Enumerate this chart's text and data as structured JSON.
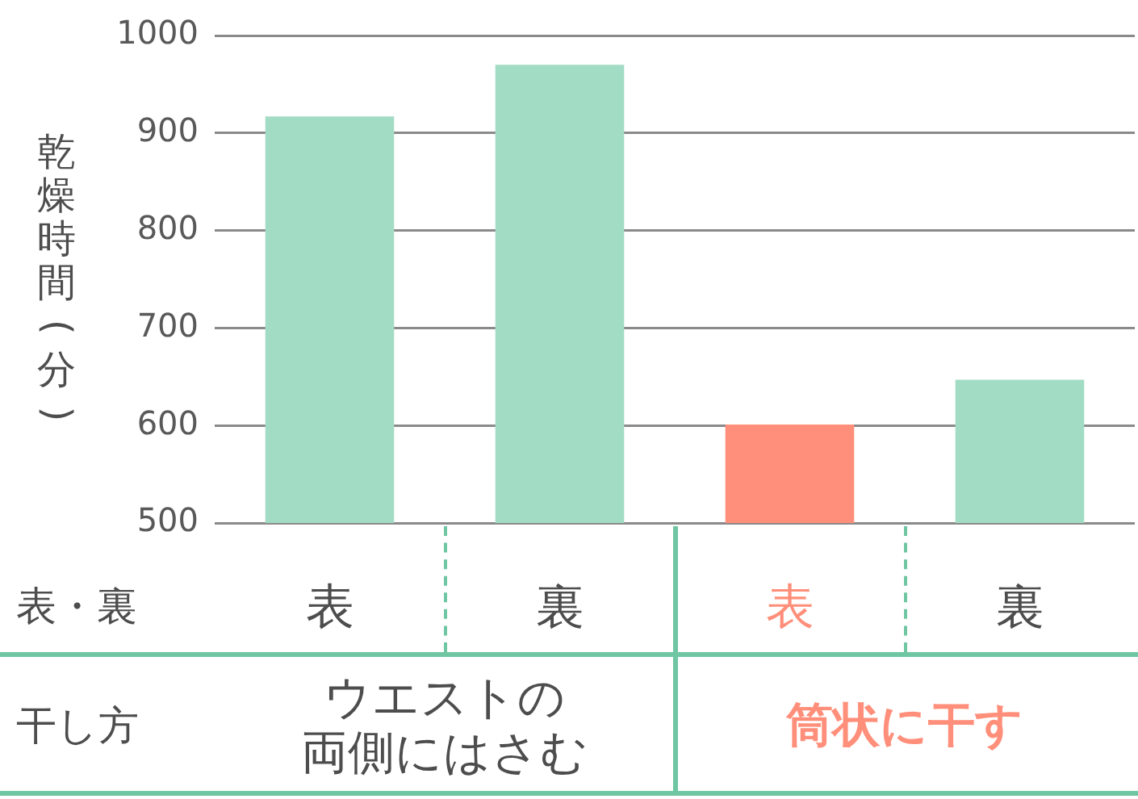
{
  "chart_data": {
    "type": "bar",
    "ylabel": "乾燥時間(分)",
    "xlabel": "表・裏",
    "categories": [
      "表",
      "裏",
      "表",
      "裏"
    ],
    "values": [
      917,
      970,
      601,
      647
    ],
    "colors": [
      "#a3dcc5",
      "#a3dcc5",
      "#ff8f7a",
      "#a3dcc5"
    ],
    "ylim": [
      500,
      1000
    ],
    "yticks": [
      500,
      600,
      700,
      800,
      900,
      1000
    ],
    "grid": "y",
    "annotations": [
      "干し方",
      "ウエストの両側にはさむ",
      "筒状に干す"
    ]
  }
}
